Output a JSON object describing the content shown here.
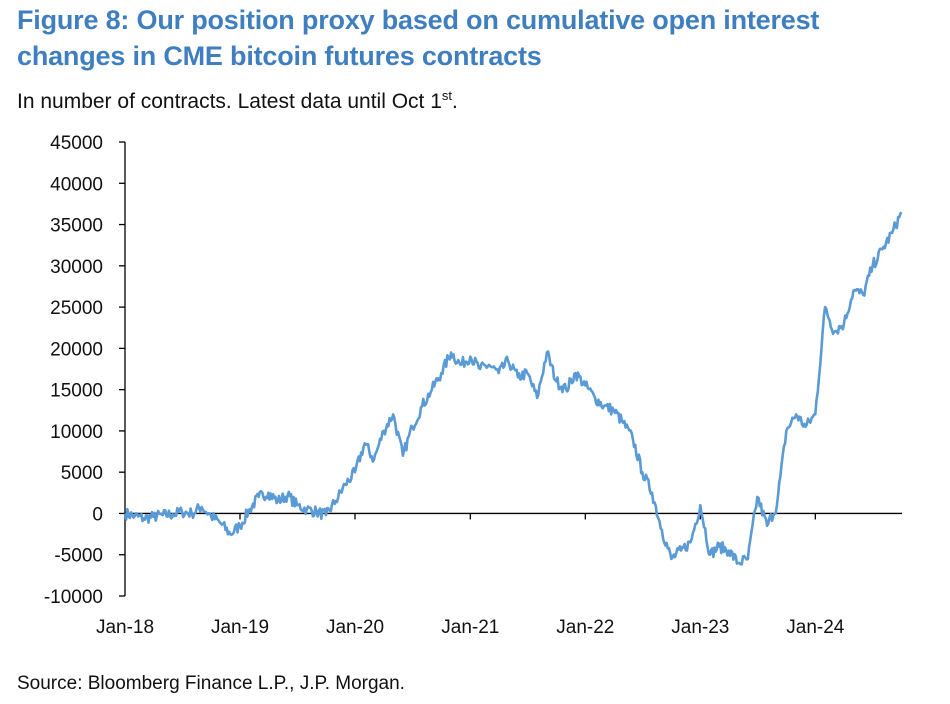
{
  "colors": {
    "title": "#3F7FC0",
    "series": "#5B9BD5",
    "axis": "#000000"
  },
  "title_line1": "Figure 8: Our position proxy based on cumulative open interest",
  "title_line2": "changes in CME bitcoin futures contracts",
  "subtitle": "In number of contracts. Latest data until Oct 1",
  "subtitle_sup": "st",
  "subtitle_end": ".",
  "source": "Source: Bloomberg Finance L.P., J.P. Morgan.",
  "chart_data": {
    "type": "line",
    "title": "Figure 8: Our position proxy based on cumulative open interest changes in CME bitcoin futures contracts",
    "ylabel": "In number of contracts",
    "xlabel": "",
    "ylim": [
      -10000,
      45000
    ],
    "xlim": [
      "2018-01-01",
      "2024-10-01"
    ],
    "yticks": [
      -10000,
      -5000,
      0,
      5000,
      10000,
      15000,
      20000,
      25000,
      30000,
      35000,
      40000,
      45000
    ],
    "ytick_labels": [
      "-10000",
      "-5000",
      "0",
      "5000",
      "10000",
      "15000",
      "20000",
      "25000",
      "30000",
      "35000",
      "40000",
      "45000"
    ],
    "xticks": [
      "2018-01-01",
      "2019-01-01",
      "2020-01-01",
      "2021-01-01",
      "2022-01-01",
      "2023-01-01",
      "2024-01-01"
    ],
    "xtick_labels": [
      "Jan-18",
      "Jan-19",
      "Jan-20",
      "Jan-21",
      "Jan-22",
      "Jan-23",
      "Jan-24"
    ],
    "grid": false,
    "legend": "none",
    "series": [
      {
        "x": [
          "2018-01-01",
          "2018-02-01",
          "2018-03-01",
          "2018-04-01",
          "2018-05-01",
          "2018-06-01",
          "2018-07-01",
          "2018-08-01",
          "2018-09-01",
          "2018-10-01",
          "2018-11-01",
          "2018-12-01",
          "2019-01-01",
          "2019-02-01",
          "2019-03-01",
          "2019-04-01",
          "2019-05-01",
          "2019-06-01",
          "2019-07-01",
          "2019-08-01",
          "2019-09-01",
          "2019-10-01",
          "2019-11-01",
          "2019-12-01",
          "2020-01-01",
          "2020-02-01",
          "2020-03-01",
          "2020-04-01",
          "2020-05-01",
          "2020-06-01",
          "2020-07-01",
          "2020-08-01",
          "2020-09-01",
          "2020-10-01",
          "2020-11-01",
          "2020-12-01",
          "2021-01-01",
          "2021-02-01",
          "2021-03-01",
          "2021-04-01",
          "2021-05-01",
          "2021-06-01",
          "2021-07-01",
          "2021-08-01",
          "2021-09-01",
          "2021-10-01",
          "2021-11-01",
          "2021-12-01",
          "2022-01-01",
          "2022-02-01",
          "2022-03-01",
          "2022-04-01",
          "2022-05-01",
          "2022-06-01",
          "2022-07-01",
          "2022-08-01",
          "2022-09-01",
          "2022-10-01",
          "2022-11-01",
          "2022-12-01",
          "2023-01-01",
          "2023-02-01",
          "2023-03-01",
          "2023-04-01",
          "2023-05-01",
          "2023-06-01",
          "2023-07-01",
          "2023-08-01",
          "2023-09-01",
          "2023-10-01",
          "2023-11-01",
          "2023-12-01",
          "2024-01-01",
          "2024-02-01",
          "2024-03-01",
          "2024-04-01",
          "2024-05-01",
          "2024-06-01",
          "2024-07-01",
          "2024-08-01",
          "2024-09-01",
          "2024-10-01"
        ],
        "values": [
          0,
          -300,
          -600,
          -400,
          -200,
          -100,
          200,
          0,
          800,
          -300,
          -1200,
          -2500,
          -1500,
          500,
          2000,
          2500,
          1500,
          2200,
          1000,
          500,
          200,
          -200,
          1500,
          3500,
          5000,
          8500,
          6500,
          10000,
          12000,
          7000,
          10500,
          13000,
          15000,
          17000,
          19500,
          18000,
          19000,
          17500,
          18000,
          17000,
          18500,
          16500,
          17000,
          14000,
          19500,
          16000,
          15000,
          17000,
          15500,
          14000,
          13000,
          12500,
          11000,
          9000,
          5000,
          2500,
          -2000,
          -5500,
          -4500,
          -3500,
          1000,
          -5000,
          -4000,
          -4500,
          -6000,
          -5500,
          2000,
          -1500,
          1000,
          10000,
          12000,
          10500,
          12000,
          25000,
          22000,
          23000,
          27000,
          26500,
          30000,
          32000,
          34000,
          36500
        ]
      }
    ]
  }
}
